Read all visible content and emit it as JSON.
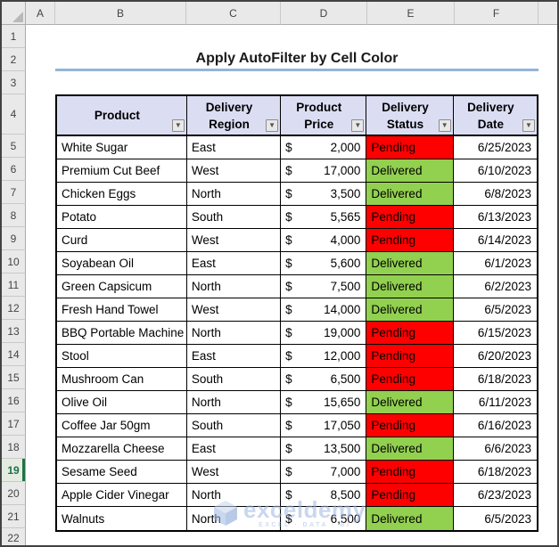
{
  "spreadsheet": {
    "column_headers": [
      "A",
      "B",
      "C",
      "D",
      "E",
      "F"
    ],
    "row_numbers": [
      "1",
      "2",
      "3",
      "4",
      "5",
      "6",
      "7",
      "8",
      "9",
      "10",
      "11",
      "12",
      "13",
      "14",
      "15",
      "16",
      "17",
      "18",
      "19",
      "20",
      "21",
      "22"
    ],
    "active_row": "19"
  },
  "title": "Apply AutoFilter by Cell Color",
  "table": {
    "currency_symbol": "$",
    "headers": [
      {
        "label": "Product"
      },
      {
        "label": "Delivery Region"
      },
      {
        "label": "Product Price"
      },
      {
        "label": "Delivery Status"
      },
      {
        "label": "Delivery Date"
      }
    ],
    "rows": [
      {
        "product": "White Sugar",
        "region": "East",
        "price": "2,000",
        "status": "Pending",
        "date": "6/25/2023"
      },
      {
        "product": "Premium Cut Beef",
        "region": "West",
        "price": "17,000",
        "status": "Delivered",
        "date": "6/10/2023"
      },
      {
        "product": "Chicken Eggs",
        "region": "North",
        "price": "3,500",
        "status": "Delivered",
        "date": "6/8/2023"
      },
      {
        "product": "Potato",
        "region": "South",
        "price": "5,565",
        "status": "Pending",
        "date": "6/13/2023"
      },
      {
        "product": "Curd",
        "region": "West",
        "price": "4,000",
        "status": "Pending",
        "date": "6/14/2023"
      },
      {
        "product": "Soyabean Oil",
        "region": "East",
        "price": "5,600",
        "status": "Delivered",
        "date": "6/1/2023"
      },
      {
        "product": "Green Capsicum",
        "region": "North",
        "price": "7,500",
        "status": "Delivered",
        "date": "6/2/2023"
      },
      {
        "product": "Fresh Hand Towel",
        "region": "West",
        "price": "14,000",
        "status": "Delivered",
        "date": "6/5/2023"
      },
      {
        "product": "BBQ Portable Machine",
        "region": "North",
        "price": "19,000",
        "status": "Pending",
        "date": "6/15/2023"
      },
      {
        "product": "Stool",
        "region": "East",
        "price": "12,000",
        "status": "Pending",
        "date": "6/20/2023"
      },
      {
        "product": "Mushroom Can",
        "region": "South",
        "price": "6,500",
        "status": "Pending",
        "date": "6/18/2023"
      },
      {
        "product": "Olive Oil",
        "region": "North",
        "price": "15,650",
        "status": "Delivered",
        "date": "6/11/2023"
      },
      {
        "product": "Coffee Jar 50gm",
        "region": "South",
        "price": "17,050",
        "status": "Pending",
        "date": "6/16/2023"
      },
      {
        "product": "Mozzarella Cheese",
        "region": "East",
        "price": "13,500",
        "status": "Delivered",
        "date": "6/6/2023"
      },
      {
        "product": "Sesame Seed",
        "region": "West",
        "price": "7,000",
        "status": "Pending",
        "date": "6/18/2023"
      },
      {
        "product": "Apple Cider Vinegar",
        "region": "North",
        "price": "8,500",
        "status": "Pending",
        "date": "6/23/2023"
      },
      {
        "product": "Walnuts",
        "region": "North",
        "price": "6,500",
        "status": "Delivered",
        "date": "6/5/2023"
      }
    ],
    "filter_icon": "▼"
  },
  "watermark": {
    "brand": "exceldemy",
    "tagline": "EXCEL · DATA · BI"
  },
  "colors": {
    "title_underline": "#95B3D7",
    "table_header_fill": "#DBDEF3",
    "status": {
      "Pending": "#FF0000",
      "Delivered": "#92D050"
    },
    "active_row_accent": "#1E7145",
    "watermark_blue": "#9DB8E2"
  }
}
